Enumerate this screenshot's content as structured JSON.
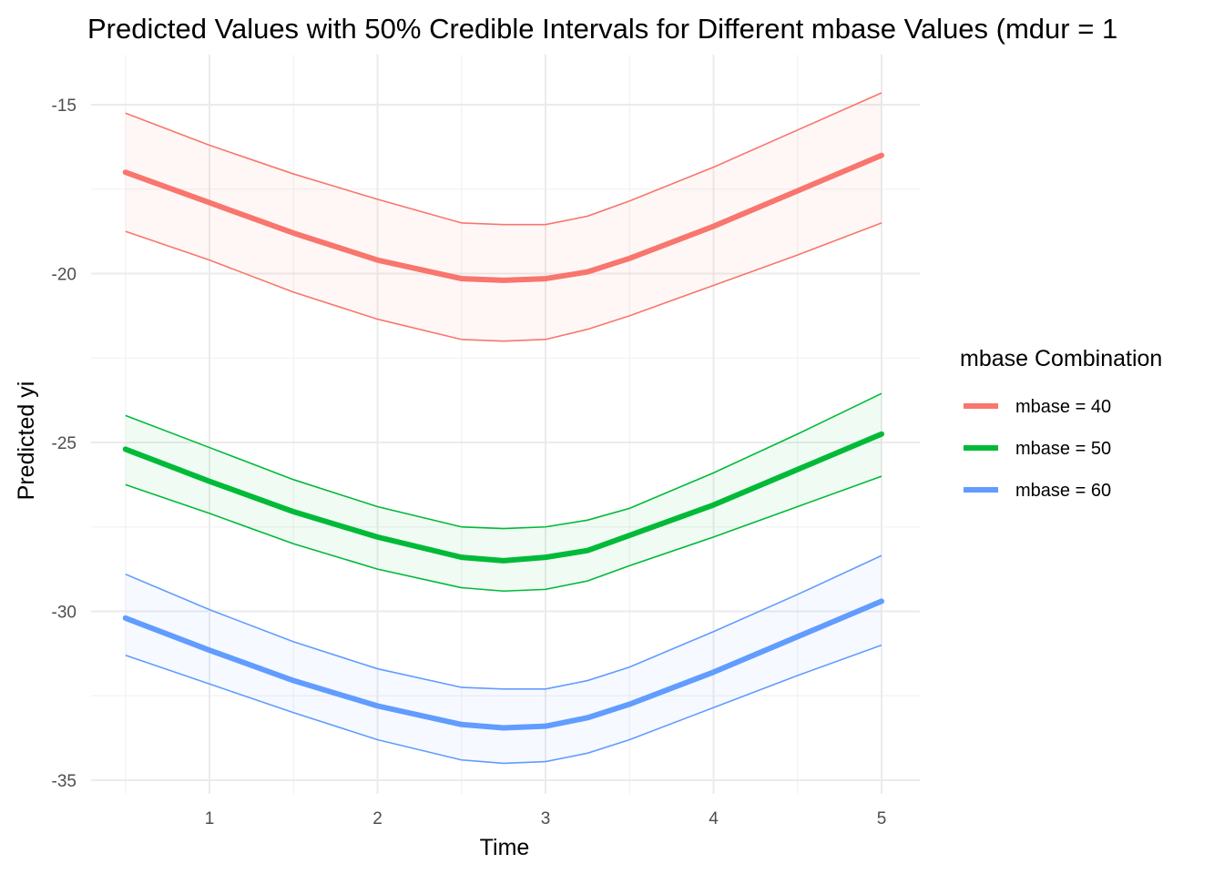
{
  "chart_data": {
    "type": "line",
    "title": "Predicted Values with 50% Credible Intervals for Different mbase Values (mdur = 1",
    "xlabel": "Time",
    "ylabel": "Predicted yi",
    "xlim": [
      0.5,
      5
    ],
    "ylim": [
      -35,
      -15
    ],
    "x_ticks": [
      1,
      2,
      3,
      4,
      5
    ],
    "y_ticks": [
      -15,
      -20,
      -25,
      -30,
      -35
    ],
    "grid": true,
    "legend": {
      "title": "mbase Combination",
      "position": "right"
    },
    "x": [
      0.5,
      1,
      1.5,
      2,
      2.5,
      2.75,
      3,
      3.25,
      3.5,
      4,
      4.5,
      5
    ],
    "series": [
      {
        "name": "mbase = 40",
        "color": "#F8766D",
        "values": [
          -17.0,
          -17.9,
          -18.8,
          -19.6,
          -20.15,
          -20.2,
          -20.15,
          -19.95,
          -19.55,
          -18.6,
          -17.55,
          -16.5
        ],
        "upper": [
          -15.25,
          -16.2,
          -17.05,
          -17.8,
          -18.5,
          -18.55,
          -18.55,
          -18.3,
          -17.85,
          -16.85,
          -15.75,
          -14.65
        ],
        "lower": [
          -18.75,
          -19.6,
          -20.55,
          -21.35,
          -21.95,
          -22.0,
          -21.95,
          -21.65,
          -21.25,
          -20.35,
          -19.45,
          -18.5
        ]
      },
      {
        "name": "mbase = 50",
        "color": "#00BA38",
        "values": [
          -25.2,
          -26.15,
          -27.05,
          -27.8,
          -28.4,
          -28.5,
          -28.4,
          -28.2,
          -27.75,
          -26.85,
          -25.8,
          -24.75
        ],
        "upper": [
          -24.2,
          -25.15,
          -26.1,
          -26.9,
          -27.5,
          -27.55,
          -27.5,
          -27.3,
          -26.95,
          -25.9,
          -24.75,
          -23.55
        ],
        "lower": [
          -26.25,
          -27.1,
          -28.0,
          -28.75,
          -29.3,
          -29.4,
          -29.35,
          -29.1,
          -28.65,
          -27.8,
          -26.9,
          -26.0
        ]
      },
      {
        "name": "mbase = 60",
        "color": "#619CFF",
        "values": [
          -30.2,
          -31.15,
          -32.05,
          -32.8,
          -33.35,
          -33.45,
          -33.4,
          -33.15,
          -32.75,
          -31.8,
          -30.75,
          -29.7
        ],
        "upper": [
          -28.9,
          -29.95,
          -30.9,
          -31.7,
          -32.25,
          -32.3,
          -32.3,
          -32.05,
          -31.65,
          -30.6,
          -29.5,
          -28.35
        ],
        "lower": [
          -31.3,
          -32.15,
          -33.0,
          -33.8,
          -34.4,
          -34.5,
          -34.45,
          -34.2,
          -33.8,
          -32.85,
          -31.9,
          -31.0
        ]
      }
    ]
  }
}
